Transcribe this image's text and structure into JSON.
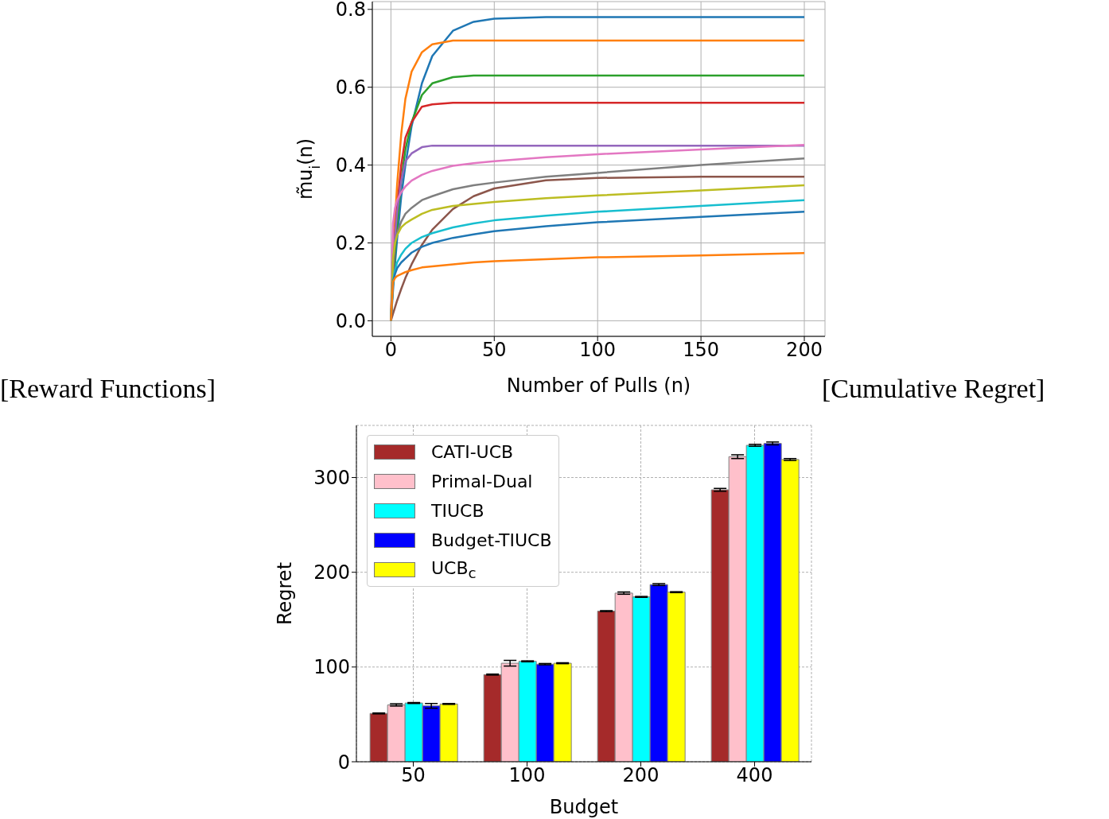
{
  "chart_data": [
    {
      "type": "line",
      "xlabel": "Number of Pulls (n)",
      "ylabel": "m̃u$_{i}$(n)",
      "annotations": [
        "[Reward Functions]"
      ],
      "x": [
        0,
        1,
        2,
        3,
        5,
        7,
        10,
        15,
        20,
        30,
        40,
        50,
        75,
        100,
        150,
        200
      ],
      "xlim": [
        -9,
        210
      ],
      "ylim": [
        -0.04,
        0.82
      ],
      "xticks": [
        0,
        50,
        100,
        150,
        200
      ],
      "yticks": [
        {
          "value": 0,
          "label": "0.0"
        },
        {
          "value": 0.2,
          "label": "0.2"
        },
        {
          "value": 0.4,
          "label": "0.4"
        },
        {
          "value": 0.6,
          "label": "0.6"
        },
        {
          "value": 0.8,
          "label": "0.8"
        }
      ],
      "grid": true,
      "marker": "none",
      "line_style": "solid",
      "series": [
        {
          "color": "#1f77b4",
          "values": [
            0,
            0.077,
            0.147,
            0.21,
            0.32,
            0.4,
            0.5,
            0.61,
            0.68,
            0.745,
            0.768,
            0.776,
            0.78,
            0.78,
            0.78,
            0.78
          ]
        },
        {
          "color": "#ff7f0e",
          "values": [
            0,
            0.14,
            0.26,
            0.35,
            0.48,
            0.57,
            0.64,
            0.69,
            0.71,
            0.72,
            0.72,
            0.72,
            0.72,
            0.72,
            0.72,
            0.72
          ]
        },
        {
          "color": "#2ca02c",
          "values": [
            0,
            0.097,
            0.18,
            0.25,
            0.36,
            0.44,
            0.51,
            0.58,
            0.61,
            0.626,
            0.63,
            0.63,
            0.63,
            0.63,
            0.63,
            0.63
          ]
        },
        {
          "color": "#d62728",
          "values": [
            0,
            0.12,
            0.22,
            0.29,
            0.4,
            0.47,
            0.51,
            0.55,
            0.556,
            0.56,
            0.56,
            0.56,
            0.56,
            0.56,
            0.56,
            0.56
          ]
        },
        {
          "color": "#9467bd",
          "values": [
            0,
            0.13,
            0.22,
            0.28,
            0.36,
            0.41,
            0.43,
            0.446,
            0.45,
            0.45,
            0.45,
            0.45,
            0.45,
            0.45,
            0.45,
            0.45
          ]
        },
        {
          "color": "#8c564b",
          "values": [
            0,
            0.018,
            0.035,
            0.052,
            0.082,
            0.11,
            0.145,
            0.195,
            0.234,
            0.287,
            0.32,
            0.34,
            0.361,
            0.367,
            0.37,
            0.37
          ]
        },
        {
          "color": "#e377c2",
          "values": [
            0,
            0.25,
            0.29,
            0.31,
            0.33,
            0.345,
            0.36,
            0.375,
            0.385,
            0.398,
            0.405,
            0.41,
            0.42,
            0.428,
            0.44,
            0.452
          ]
        },
        {
          "color": "#7f7f7f",
          "values": [
            0,
            0.15,
            0.2,
            0.225,
            0.255,
            0.275,
            0.29,
            0.31,
            0.32,
            0.338,
            0.348,
            0.355,
            0.37,
            0.38,
            0.4,
            0.417
          ]
        },
        {
          "color": "#bcbd22",
          "values": [
            0,
            0.16,
            0.2,
            0.22,
            0.24,
            0.25,
            0.26,
            0.275,
            0.285,
            0.295,
            0.3,
            0.305,
            0.315,
            0.322,
            0.335,
            0.348
          ]
        },
        {
          "color": "#17becf",
          "values": [
            0,
            0.1,
            0.13,
            0.15,
            0.17,
            0.185,
            0.2,
            0.215,
            0.225,
            0.24,
            0.25,
            0.258,
            0.27,
            0.28,
            0.295,
            0.31
          ]
        },
        {
          "color": "#1f77b4",
          "values": [
            0,
            0.1,
            0.12,
            0.135,
            0.15,
            0.16,
            0.175,
            0.19,
            0.2,
            0.213,
            0.222,
            0.23,
            0.243,
            0.253,
            0.267,
            0.28
          ]
        },
        {
          "color": "#ff7f0e",
          "values": [
            0,
            0.1,
            0.11,
            0.115,
            0.12,
            0.125,
            0.13,
            0.137,
            0.14,
            0.145,
            0.15,
            0.153,
            0.158,
            0.163,
            0.168,
            0.174
          ]
        }
      ]
    },
    {
      "type": "bar",
      "xlabel": "Budget",
      "ylabel": "Regret",
      "annotations": [
        "[Cumulative Regret]"
      ],
      "categories": [
        "50",
        "100",
        "200",
        "400"
      ],
      "ylim": [
        0,
        355
      ],
      "yticks": [
        0,
        100,
        200,
        300
      ],
      "grid": true,
      "legend": "top left",
      "series": [
        {
          "name": "CATI-UCB",
          "color": "#a52a2a",
          "values": [
            51,
            92,
            159,
            287
          ],
          "errors": [
            0.5,
            0.5,
            0.5,
            1.5
          ]
        },
        {
          "name": "Primal-Dual",
          "color": "#ffc0cb",
          "values": [
            60,
            104,
            178,
            322
          ],
          "errors": [
            1.2,
            3,
            1.2,
            2
          ]
        },
        {
          "name": "TIUCB",
          "color": "#00ffff",
          "values": [
            62,
            106,
            174,
            334
          ],
          "errors": [
            0.5,
            0.5,
            0.5,
            1
          ]
        },
        {
          "name": "Budget-TIUCB",
          "color": "#0000ff",
          "values": [
            59,
            103,
            187,
            336
          ],
          "errors": [
            2.5,
            0.7,
            1,
            1.5
          ]
        },
        {
          "name": "UCB$_{c}$",
          "color": "#ffff00",
          "values": [
            61,
            104,
            179,
            319
          ],
          "errors": [
            0.5,
            0.5,
            0.5,
            1
          ]
        }
      ]
    }
  ]
}
